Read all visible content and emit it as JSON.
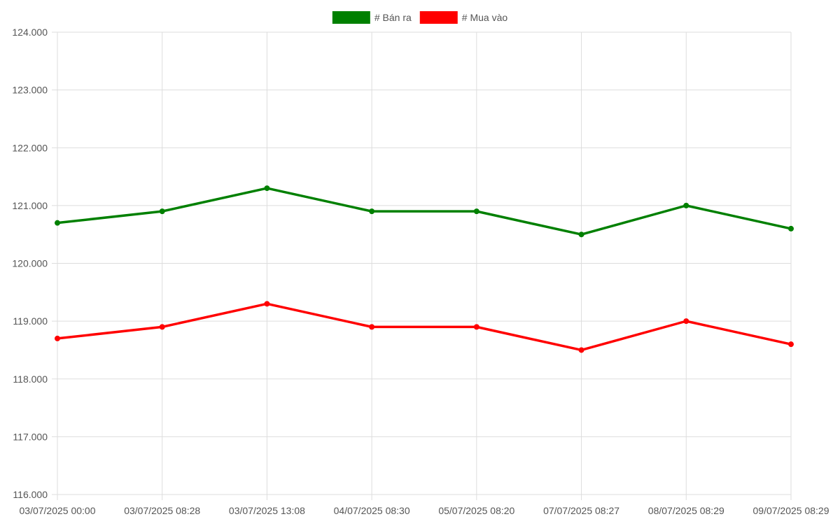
{
  "chart_data": {
    "type": "line",
    "title": "",
    "xlabel": "",
    "ylabel": "",
    "categories": [
      "03/07/2025 00:00",
      "03/07/2025 08:28",
      "03/07/2025 13:08",
      "04/07/2025 08:30",
      "05/07/2025 08:20",
      "07/07/2025 08:27",
      "08/07/2025 08:29",
      "09/07/2025 08:29"
    ],
    "ylim": [
      116000,
      124000
    ],
    "y_ticks": [
      116000,
      117000,
      118000,
      119000,
      120000,
      121000,
      122000,
      123000,
      124000
    ],
    "y_tick_labels": [
      "116.000",
      "117.000",
      "118.000",
      "119.000",
      "120.000",
      "121.000",
      "122.000",
      "123.000",
      "124.000"
    ],
    "grid": true,
    "legend_position": "top-center",
    "series": [
      {
        "name": "# Bán ra",
        "color": "#008000",
        "values": [
          120700,
          120900,
          121300,
          120900,
          120900,
          120500,
          121000,
          120600
        ]
      },
      {
        "name": "# Mua vào",
        "color": "#ff0000",
        "values": [
          118700,
          118900,
          119300,
          118900,
          118900,
          118500,
          119000,
          118600
        ]
      }
    ]
  }
}
